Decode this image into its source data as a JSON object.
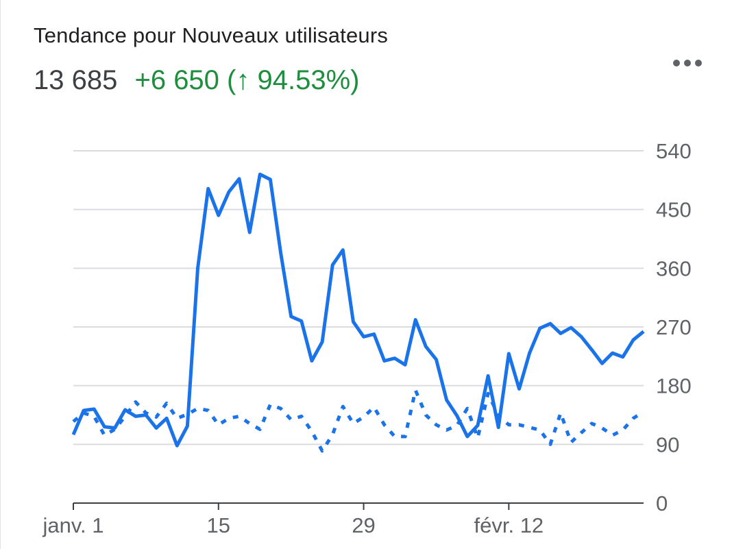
{
  "header": {
    "title": "Tendance pour Nouveaux utilisateurs",
    "total": "13 685",
    "delta": "+6 650 (↑ 94.53%)"
  },
  "menu": {
    "icon": "more-horizontal-icon"
  },
  "colors": {
    "series_current": "#1a73e8",
    "series_previous": "#1a73e8",
    "delta_positive": "#1e8e3e"
  },
  "chart_data": {
    "type": "line",
    "x_start": "2024-01-01",
    "yticks": [
      0,
      90,
      180,
      270,
      360,
      450,
      540
    ],
    "ylim": [
      0,
      540
    ],
    "y_axis_side": "right",
    "xticks": [
      {
        "label": "janv. 1",
        "index": 0
      },
      {
        "label": "15",
        "index": 14
      },
      {
        "label": "29",
        "index": 28
      },
      {
        "label": "févr. 12",
        "index": 42
      }
    ],
    "grid": true,
    "series": [
      {
        "style": "solid",
        "values": [
          105,
          142,
          144,
          117,
          115,
          143,
          133,
          135,
          115,
          130,
          88,
          118,
          360,
          482,
          441,
          477,
          497,
          415,
          504,
          496,
          384,
          286,
          279,
          218,
          247,
          365,
          388,
          278,
          255,
          259,
          218,
          222,
          212,
          281,
          240,
          220,
          158,
          134,
          102,
          119,
          195,
          116,
          229,
          175,
          230,
          268,
          275,
          260,
          269,
          255,
          235,
          214,
          230,
          224,
          250,
          263
        ]
      },
      {
        "style": "dotted",
        "values": [
          125,
          138,
          133,
          104,
          113,
          133,
          155,
          138,
          132,
          153,
          130,
          136,
          145,
          142,
          120,
          130,
          133,
          122,
          113,
          151,
          145,
          128,
          133,
          110,
          80,
          105,
          148,
          122,
          132,
          147,
          120,
          102,
          102,
          173,
          135,
          120,
          112,
          119,
          145,
          100,
          168,
          134,
          120,
          120,
          116,
          112,
          90,
          138,
          93,
          108,
          122,
          115,
          104,
          112,
          130,
          140
        ]
      }
    ]
  }
}
